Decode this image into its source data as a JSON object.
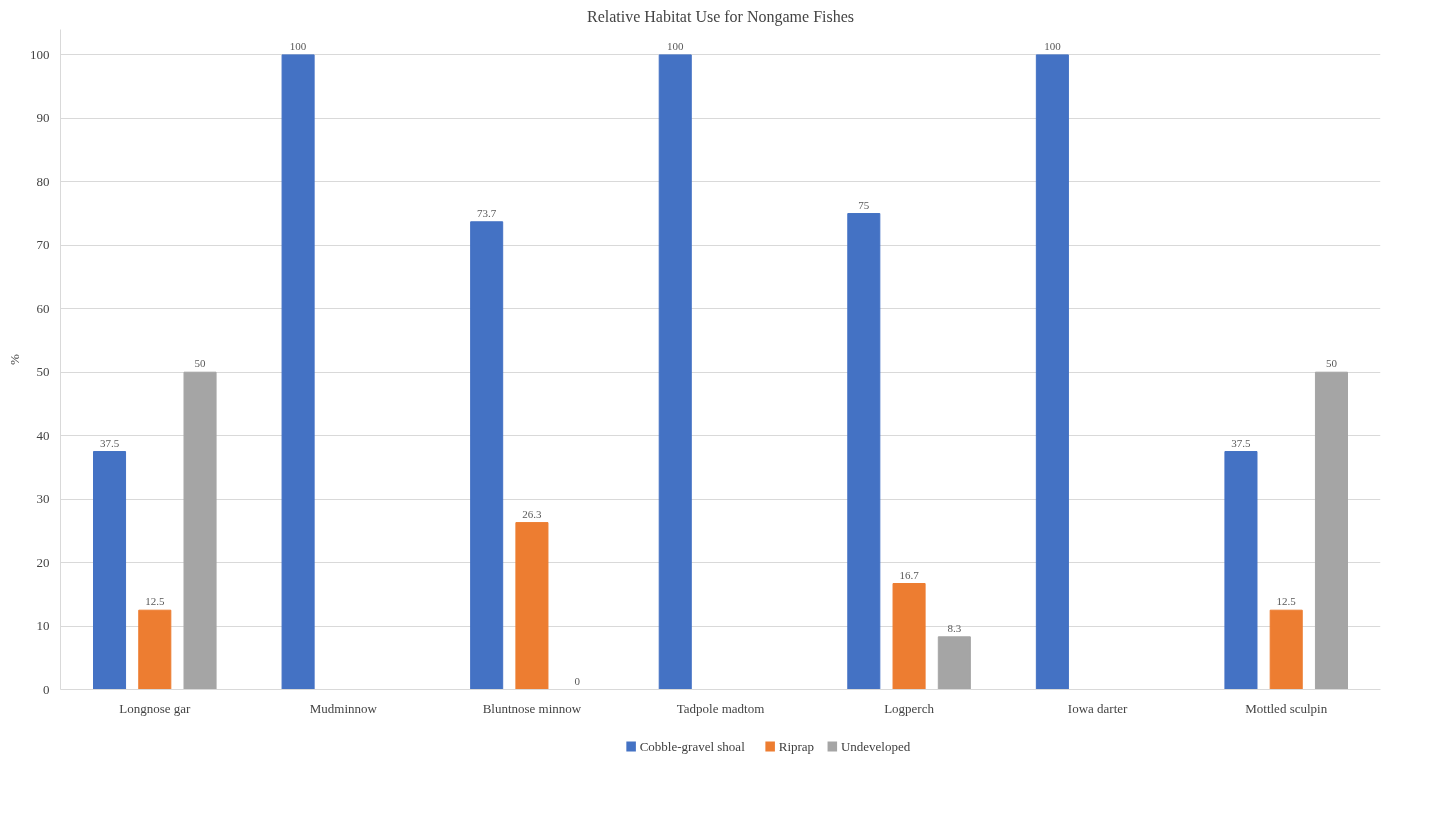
{
  "chart_data": {
    "type": "bar",
    "title": "Relative Habitat Use for Nongame Fishes",
    "ylabel": "%",
    "categories": [
      "Longnose gar",
      "Mudminnow",
      "Bluntnose minnow",
      "Tadpole madtom",
      "Logperch",
      "Iowa darter",
      "Mottled sculpin"
    ],
    "series": [
      {
        "name": "Cobble-gravel shoal",
        "color": "#4472c4",
        "values": [
          37.5,
          100,
          73.7,
          100,
          75,
          100,
          37.5
        ],
        "value_labels": [
          "37.5",
          "100",
          "73.7",
          "100",
          "75",
          "100",
          "37.5"
        ]
      },
      {
        "name": "Riprap",
        "color": "#ed7d31",
        "values": [
          12.5,
          null,
          26.3,
          null,
          16.7,
          null,
          12.5
        ],
        "value_labels": [
          "12.5",
          null,
          "26.3",
          null,
          "16.7",
          null,
          "12.5"
        ]
      },
      {
        "name": "Undeveloped",
        "color": "#a5a5a5",
        "values": [
          50,
          null,
          0,
          null,
          8.3,
          null,
          50
        ],
        "value_labels": [
          "50",
          null,
          "0",
          null,
          "8.3",
          null,
          "50"
        ]
      }
    ],
    "ylim": [
      0,
      104
    ],
    "yticks": [
      0,
      10,
      20,
      30,
      40,
      50,
      60,
      70,
      80,
      90,
      100
    ],
    "grid": "y",
    "legend": "bottom"
  }
}
